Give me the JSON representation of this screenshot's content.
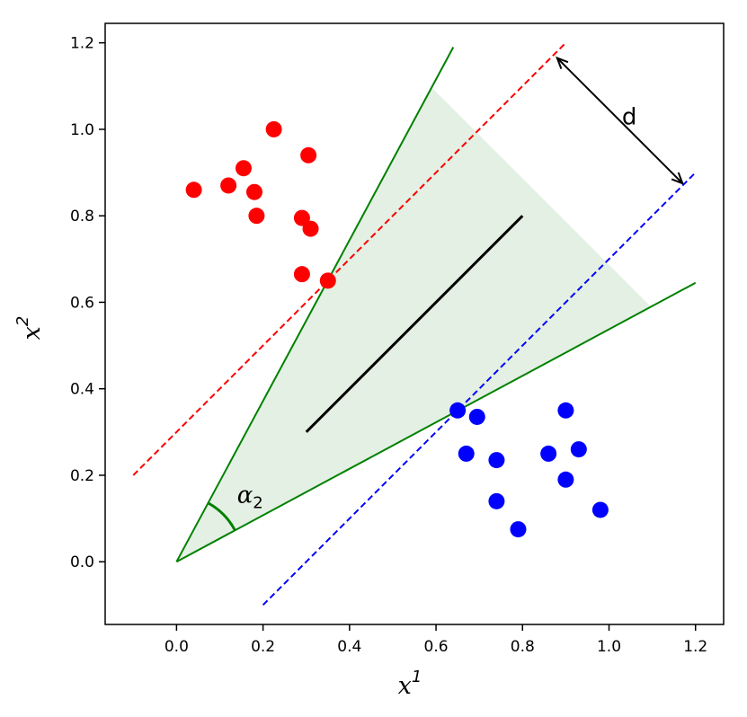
{
  "chart_data": {
    "type": "scatter",
    "title": "",
    "xlabel": {
      "base": "x",
      "sup": "1"
    },
    "ylabel": {
      "base": "x",
      "sup": "2"
    },
    "xlim": [
      -0.165,
      1.265
    ],
    "ylim": [
      -0.145,
      1.245
    ],
    "x_ticks": [
      0.0,
      0.2,
      0.4,
      0.6,
      0.8,
      1.0,
      1.2
    ],
    "x_tick_labels": [
      "0.0",
      "0.2",
      "0.4",
      "0.6",
      "0.8",
      "1.0",
      "1.2"
    ],
    "y_ticks": [
      0.0,
      0.2,
      0.4,
      0.6,
      0.8,
      1.0,
      1.2
    ],
    "y_tick_labels": [
      "0.0",
      "0.2",
      "0.4",
      "0.6",
      "0.8",
      "1.0",
      "1.2"
    ],
    "grid": false,
    "colors": {
      "red": "#ff0000",
      "blue": "#0000ff",
      "green": "#008000",
      "wedge_fill": "#e3f0e3",
      "black": "#000000"
    },
    "series": [
      {
        "color": "red",
        "points": [
          [
            0.04,
            0.86
          ],
          [
            0.12,
            0.87
          ],
          [
            0.155,
            0.91
          ],
          [
            0.18,
            0.855
          ],
          [
            0.185,
            0.8
          ],
          [
            0.225,
            1.0
          ],
          [
            0.29,
            0.795
          ],
          [
            0.305,
            0.94
          ],
          [
            0.31,
            0.77
          ],
          [
            0.29,
            0.665
          ],
          [
            0.35,
            0.65
          ]
        ]
      },
      {
        "color": "blue",
        "points": [
          [
            0.65,
            0.35
          ],
          [
            0.695,
            0.335
          ],
          [
            0.67,
            0.25
          ],
          [
            0.74,
            0.235
          ],
          [
            0.74,
            0.14
          ],
          [
            0.79,
            0.075
          ],
          [
            0.86,
            0.25
          ],
          [
            0.9,
            0.35
          ],
          [
            0.93,
            0.26
          ],
          [
            0.9,
            0.19
          ],
          [
            0.98,
            0.12
          ]
        ]
      }
    ],
    "lines": [
      {
        "name": "red-dashed-boundary",
        "color": "red",
        "dash": true,
        "points": [
          [
            -0.1,
            0.2
          ],
          [
            0.9,
            1.2
          ]
        ]
      },
      {
        "name": "blue-dashed-boundary",
        "color": "blue",
        "dash": true,
        "points": [
          [
            0.2,
            -0.1
          ],
          [
            1.2,
            0.9
          ]
        ]
      },
      {
        "name": "green-upper-ray",
        "color": "green",
        "dash": false,
        "points": [
          [
            0.0,
            0.0
          ],
          [
            0.64,
            1.19
          ]
        ]
      },
      {
        "name": "green-lower-ray",
        "color": "green",
        "dash": false,
        "points": [
          [
            0.0,
            0.0
          ],
          [
            1.2,
            0.645
          ]
        ]
      },
      {
        "name": "black-direction-line",
        "color": "black",
        "dash": false,
        "points": [
          [
            0.3,
            0.3
          ],
          [
            0.8,
            0.8
          ]
        ]
      }
    ],
    "wedge": [
      [
        0.0,
        0.0
      ],
      [
        0.59,
        1.095
      ],
      [
        1.095,
        0.59
      ]
    ],
    "angle_arc": {
      "center": [
        0.0,
        0.0
      ],
      "radius": 0.155,
      "from_point": [
        0.073,
        0.136
      ],
      "to_point": [
        0.135,
        0.073
      ]
    },
    "arrow": {
      "from": [
        0.88,
        1.165
      ],
      "to": [
        1.17,
        0.875
      ]
    },
    "annotations": [
      {
        "text": "d",
        "x": 1.03,
        "y": 1.03
      },
      {
        "base": "α",
        "sub": "2",
        "x": 0.14,
        "y": 0.155
      }
    ]
  }
}
